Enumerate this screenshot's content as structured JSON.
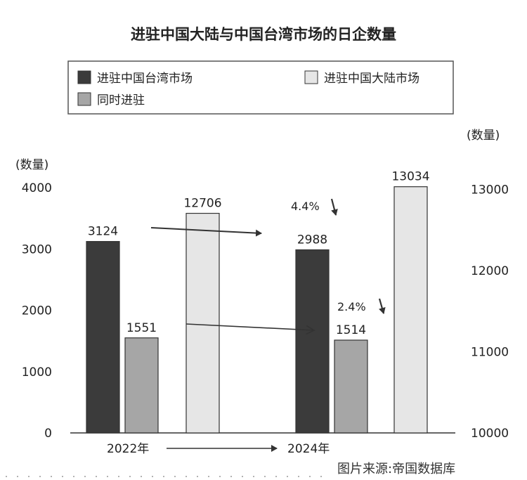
{
  "chart_data": {
    "type": "bar",
    "title": "进驻中国大陆与中国台湾市场的日企数量",
    "categories": [
      "2022年",
      "2024年"
    ],
    "series": [
      {
        "name": "进驻中国台湾市场",
        "axis": "left",
        "color": "#3b3b3b",
        "values": [
          3124,
          2988
        ]
      },
      {
        "name": "同时进驻",
        "axis": "left",
        "color": "#a6a6a6",
        "values": [
          1551,
          1514
        ]
      },
      {
        "name": "进驻中国大陆市场",
        "axis": "right",
        "color": "#e6e6e6",
        "values": [
          12706,
          13034
        ]
      }
    ],
    "value_labels": [
      [
        "3124",
        "2988"
      ],
      [
        "1551",
        "1514"
      ],
      [
        "12706",
        "13034"
      ]
    ],
    "left_axis": {
      "label": "(数量)",
      "ylim": [
        0,
        5000
      ],
      "ticks": [
        0,
        1000,
        2000,
        3000,
        4000
      ]
    },
    "right_axis": {
      "label": "(数量)",
      "ylim": [
        10000,
        13750
      ],
      "ticks": [
        10000,
        11000,
        12000,
        13000
      ]
    },
    "annotations": [
      "4.4%",
      "2.4%"
    ],
    "legend_position": "top",
    "grid": false
  },
  "source": "图片来源:帝国数据库"
}
